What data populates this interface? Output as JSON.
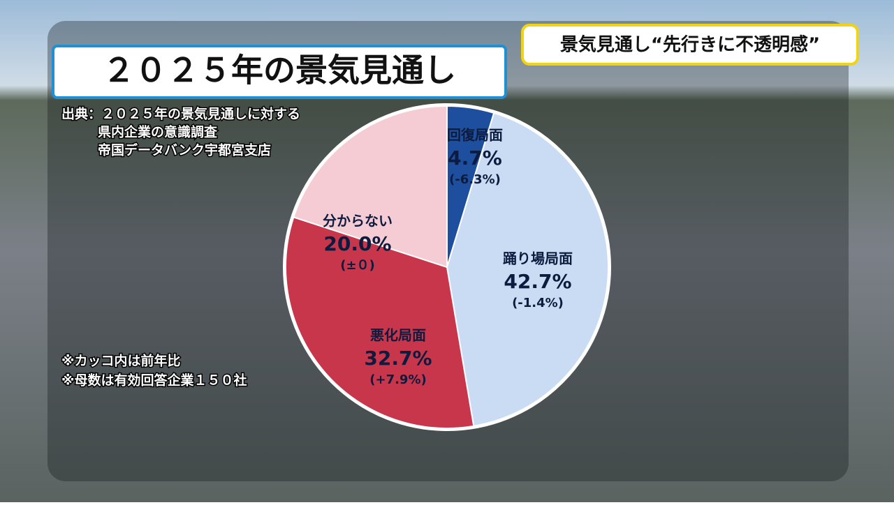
{
  "header": {
    "title": "２０２５年の景気見通し",
    "topic": "景気見通し“先行きに不透明感”"
  },
  "source": [
    "出典：２０２５年の景気見通しに対する",
    "県内企業の意識調査",
    "帝国データバンク宇都宮支店"
  ],
  "notes": [
    "※カッコ内は前年比",
    "※母数は有効回答企業１５０社"
  ],
  "chart_data": {
    "type": "pie",
    "categories": [
      "回復局面",
      "踊り場局面",
      "悪化局面",
      "分からない"
    ],
    "values": [
      4.7,
      42.7,
      32.7,
      20.0
    ],
    "value_labels": [
      "4.7%",
      "42.7%",
      "32.7%",
      "20.0%"
    ],
    "changes": [
      "(-6.3%)",
      "(-1.4%)",
      "(+7.9%)",
      "(±０)"
    ],
    "colors": [
      "#1e4f9e",
      "#cadcf4",
      "#c7364b",
      "#f5ccd3"
    ]
  }
}
